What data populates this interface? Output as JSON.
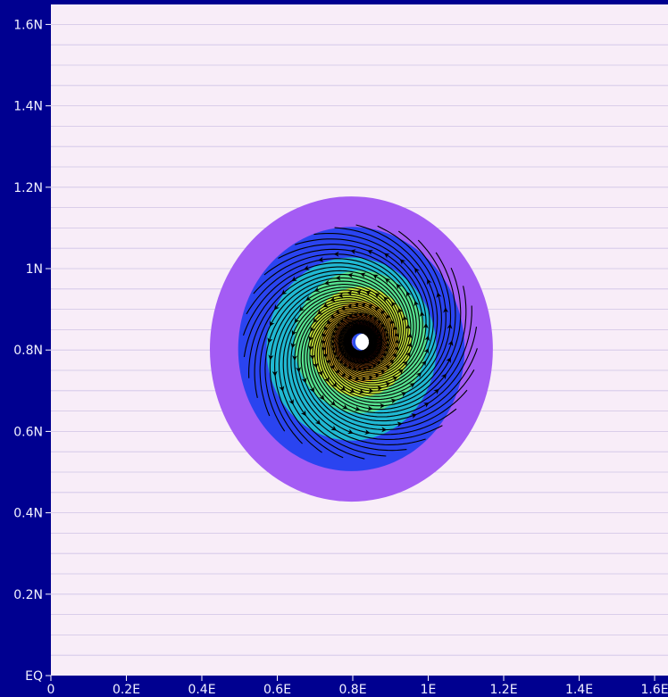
{
  "colors": {
    "frame": "#000090",
    "plot_background": "#f8edf8",
    "streamline": "#000000",
    "tick_label": "#f2f2ff"
  },
  "chart_data": {
    "type": "contour-streamline",
    "title": "",
    "xlabel": "",
    "ylabel": "",
    "xlim": [
      0,
      1.65
    ],
    "ylim": [
      0,
      1.65
    ],
    "x_ticks": [
      0,
      0.2,
      0.4,
      0.6,
      0.8,
      1.0,
      1.2,
      1.4,
      1.6
    ],
    "x_tick_labels": [
      "0",
      "0.2E",
      "0.4E",
      "0.6E",
      "0.8E",
      "1E",
      "1.2E",
      "1.4E",
      "1.6E"
    ],
    "y_ticks": [
      0,
      0.2,
      0.4,
      0.6,
      0.8,
      1.0,
      1.2,
      1.4,
      1.6
    ],
    "y_tick_labels": [
      "EQ",
      "0.2N",
      "0.4N",
      "0.6N",
      "0.8N",
      "1N",
      "1.2N",
      "1.4N",
      "1.6N"
    ],
    "grid": "horizontal",
    "vortex_center": [
      0.82,
      0.82
    ],
    "rotation": "counter-clockwise",
    "contour_levels": [
      {
        "radius": 0.375,
        "color": "#a45cf4"
      },
      {
        "radius": 0.3,
        "color": "#2a44f0"
      },
      {
        "radius": 0.225,
        "color": "#20b8d2"
      },
      {
        "radius": 0.175,
        "color": "#56e290"
      },
      {
        "radius": 0.135,
        "color": "#cdeb3a"
      },
      {
        "radius": 0.1,
        "color": "#f6c62a"
      },
      {
        "radius": 0.07,
        "color": "#f57a17"
      },
      {
        "radius": 0.05,
        "color": "#e61e12"
      },
      {
        "radius": 0.035,
        "color": "#8a4cf0"
      },
      {
        "radius": 0.028,
        "color": "#2f52f0"
      },
      {
        "radius": 0.02,
        "color": "#ffffff"
      }
    ]
  }
}
